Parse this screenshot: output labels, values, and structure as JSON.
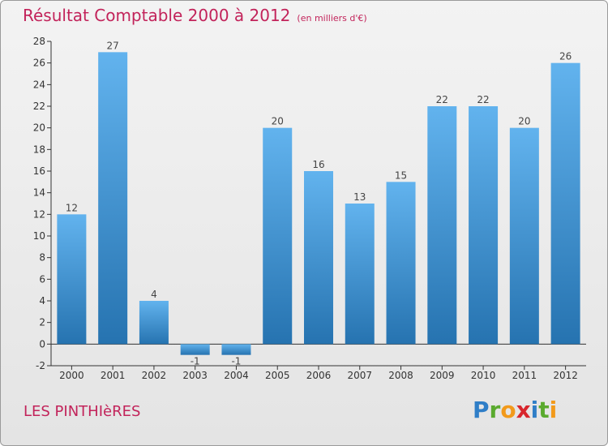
{
  "page": {
    "title": "Résultat Comptable 2000 à 2012",
    "subtitle": "(en milliers d'€)",
    "commune": "LES PINTHIèRES",
    "logo": {
      "letters": [
        "P",
        "r",
        "o",
        "x",
        "i",
        "t",
        "i"
      ],
      "colors": [
        "#2f7ec7",
        "#5aaa2e",
        "#f29a1b",
        "#d8262d",
        "#2f7ec7",
        "#5aaa2e",
        "#f29a1b"
      ]
    }
  },
  "chart_data": {
    "type": "bar",
    "title": "Résultat Comptable 2000 à 2012",
    "subtitle": "(en milliers d'€)",
    "categories": [
      "2000",
      "2001",
      "2002",
      "2003",
      "2004",
      "2005",
      "2006",
      "2007",
      "2008",
      "2009",
      "2010",
      "2011",
      "2012"
    ],
    "values": [
      12,
      27,
      4,
      -1,
      -1,
      20,
      16,
      13,
      15,
      22,
      22,
      20,
      26
    ],
    "ylim": [
      -2,
      28
    ],
    "yticks": [
      -2,
      0,
      2,
      4,
      6,
      8,
      10,
      12,
      14,
      16,
      18,
      20,
      22,
      24,
      26,
      28
    ],
    "xlabel": "",
    "ylabel": "",
    "grid": false,
    "bar_color_light": "#62b3ee",
    "bar_color_dark": "#2673b0"
  }
}
